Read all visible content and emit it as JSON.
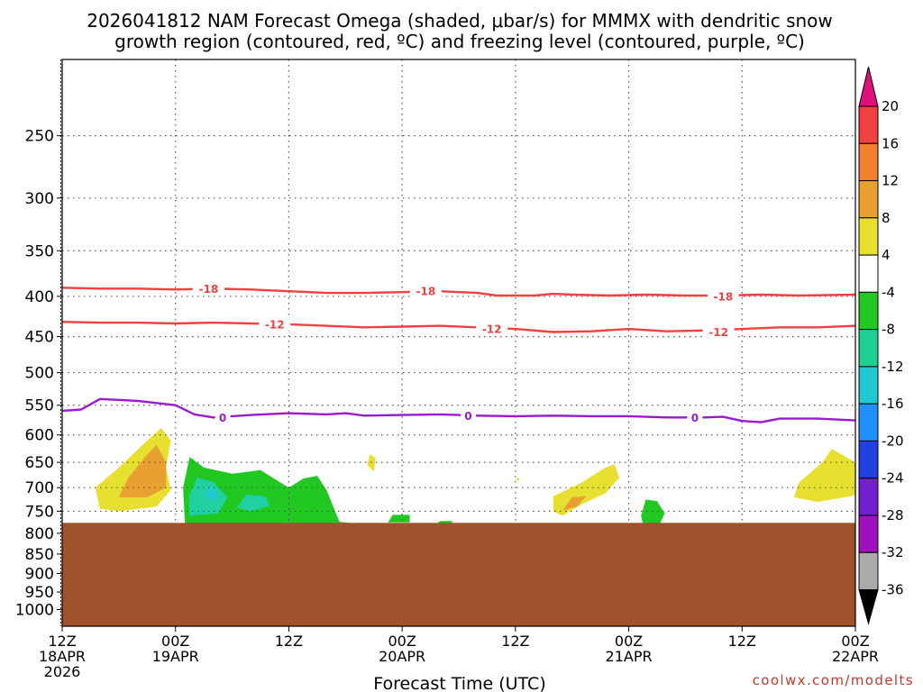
{
  "title_line1": "2026041812 NAM Forecast Omega (shaded, μbar/s) for MMMX with dendritic snow",
  "title_line2": "growth region (contoured, red, ºC) and freezing level (contoured, purple, ºC)",
  "credit": "coolwx.com/modelts",
  "chart_data": {
    "type": "heatmap",
    "title": "2026041812 NAM Forecast Omega (shaded, μbar/s) for MMMX with dendritic snow growth region (contoured, red, ºC) and freezing level (contoured, purple, ºC)",
    "xlabel": "Forecast Time (UTC)",
    "ylabel": "",
    "x_unit": "hours since 2026-04-18 12Z",
    "xlim": [
      0,
      84
    ],
    "ylim": [
      1050,
      200
    ],
    "y_scale": "log-pressure",
    "y_ticks": [
      250,
      300,
      350,
      400,
      450,
      500,
      550,
      600,
      650,
      700,
      750,
      800,
      850,
      900,
      950,
      1000
    ],
    "x_ticks": [
      {
        "x": 0,
        "l1": "12Z",
        "l2": "18APR",
        "l3": "2026"
      },
      {
        "x": 12,
        "l1": "00Z",
        "l2": "19APR",
        "l3": ""
      },
      {
        "x": 24,
        "l1": "12Z",
        "l2": "",
        "l3": ""
      },
      {
        "x": 36,
        "l1": "00Z",
        "l2": "20APR",
        "l3": ""
      },
      {
        "x": 48,
        "l1": "12Z",
        "l2": "",
        "l3": ""
      },
      {
        "x": 60,
        "l1": "00Z",
        "l2": "21APR",
        "l3": ""
      },
      {
        "x": 72,
        "l1": "12Z",
        "l2": "",
        "l3": ""
      },
      {
        "x": 84,
        "l1": "00Z",
        "l2": "22APR",
        "l3": ""
      }
    ],
    "grid": true,
    "ground_level_hpa": 776,
    "ground_color": "#a0522d",
    "contours": [
      {
        "name": "-18",
        "color": "#f04040",
        "points": [
          [
            0,
            390
          ],
          [
            4,
            391
          ],
          [
            8,
            391
          ],
          [
            12,
            392
          ],
          [
            16,
            391
          ],
          [
            20,
            392
          ],
          [
            24,
            394
          ],
          [
            28,
            396
          ],
          [
            32,
            396
          ],
          [
            36,
            395
          ],
          [
            40,
            394
          ],
          [
            44,
            396
          ],
          [
            46,
            399
          ],
          [
            48,
            399
          ],
          [
            50,
            399
          ],
          [
            52,
            397
          ],
          [
            54,
            398
          ],
          [
            58,
            399
          ],
          [
            62,
            398
          ],
          [
            66,
            399
          ],
          [
            70,
            399
          ],
          [
            74,
            398
          ],
          [
            78,
            399
          ],
          [
            84,
            398
          ]
        ],
        "labels": [
          [
            15.5,
            391
          ],
          [
            38.5,
            394
          ],
          [
            70,
            400
          ]
        ]
      },
      {
        "name": "-12",
        "color": "#f04040",
        "points": [
          [
            0,
            431
          ],
          [
            4,
            432
          ],
          [
            8,
            432
          ],
          [
            12,
            433
          ],
          [
            16,
            432
          ],
          [
            20,
            433
          ],
          [
            24,
            434
          ],
          [
            28,
            436
          ],
          [
            32,
            438
          ],
          [
            36,
            437
          ],
          [
            40,
            436
          ],
          [
            44,
            438
          ],
          [
            48,
            440
          ],
          [
            52,
            444
          ],
          [
            56,
            443
          ],
          [
            60,
            440
          ],
          [
            64,
            443
          ],
          [
            68,
            442
          ],
          [
            72,
            440
          ],
          [
            76,
            438
          ],
          [
            80,
            438
          ],
          [
            84,
            436
          ]
        ],
        "labels": [
          [
            22.5,
            434
          ],
          [
            45.5,
            440
          ],
          [
            69.5,
            444
          ]
        ]
      },
      {
        "name": "0",
        "color": "#9a1ad0",
        "points": [
          [
            0,
            559
          ],
          [
            2,
            557
          ],
          [
            4,
            540
          ],
          [
            8,
            543
          ],
          [
            12,
            550
          ],
          [
            14,
            565
          ],
          [
            16,
            570
          ],
          [
            20,
            566
          ],
          [
            24,
            563
          ],
          [
            28,
            565
          ],
          [
            30,
            563
          ],
          [
            32,
            567
          ],
          [
            36,
            566
          ],
          [
            40,
            565
          ],
          [
            44,
            567
          ],
          [
            48,
            568
          ],
          [
            52,
            567
          ],
          [
            56,
            568
          ],
          [
            60,
            568
          ],
          [
            64,
            570
          ],
          [
            68,
            570
          ],
          [
            70,
            569
          ],
          [
            72,
            576
          ],
          [
            74,
            578
          ],
          [
            76,
            572
          ],
          [
            80,
            572
          ],
          [
            84,
            575
          ]
        ],
        "labels": [
          [
            17,
            570
          ],
          [
            43,
            567
          ],
          [
            67,
            570
          ]
        ]
      }
    ],
    "omega_regions": [
      {
        "value": "4 to 8",
        "color": "#e8e030",
        "points": [
          [
            4,
            745
          ],
          [
            3.5,
            700
          ],
          [
            6,
            660
          ],
          [
            9,
            610
          ],
          [
            10.5,
            588
          ],
          [
            11.5,
            610
          ],
          [
            11,
            660
          ],
          [
            11.5,
            705
          ],
          [
            10,
            740
          ],
          [
            6,
            750
          ]
        ]
      },
      {
        "value": "8 to 12",
        "color": "#e8a030",
        "points": [
          [
            6,
            720
          ],
          [
            7,
            680
          ],
          [
            9,
            635
          ],
          [
            10,
            618
          ],
          [
            11,
            650
          ],
          [
            11,
            700
          ],
          [
            9,
            720
          ]
        ]
      },
      {
        "value": "4 to 8",
        "color": "#e8e030",
        "points": [
          [
            32.3,
            655
          ],
          [
            32.6,
            635
          ],
          [
            33.2,
            642
          ],
          [
            33,
            668
          ]
        ]
      },
      {
        "value": "4 to 8",
        "color": "#e8e030",
        "points": [
          [
            48,
            685
          ],
          [
            48.3,
            680
          ],
          [
            48.5,
            686
          ]
        ]
      },
      {
        "value": "4 to 8",
        "color": "#e8e030",
        "points": [
          [
            52,
            750
          ],
          [
            52,
            718
          ],
          [
            55,
            690
          ],
          [
            57.5,
            660
          ],
          [
            58.5,
            654
          ],
          [
            59,
            680
          ],
          [
            57.5,
            712
          ],
          [
            55,
            735
          ],
          [
            53,
            760
          ]
        ]
      },
      {
        "value": "8 to 12",
        "color": "#e8a030",
        "points": [
          [
            53,
            748
          ],
          [
            54,
            720
          ],
          [
            55.5,
            718
          ],
          [
            54.5,
            740
          ]
        ]
      },
      {
        "value": "4 to 8",
        "color": "#e8e030",
        "points": [
          [
            77.5,
            720
          ],
          [
            78,
            690
          ],
          [
            80.5,
            650
          ],
          [
            81.5,
            625
          ],
          [
            84,
            650
          ],
          [
            84,
            716
          ],
          [
            80,
            730
          ]
        ]
      },
      {
        "value": "-8 to -4",
        "color": "#22c822",
        "points": [
          [
            13,
            780
          ],
          [
            12.8,
            700
          ],
          [
            13.5,
            640
          ],
          [
            15,
            660
          ],
          [
            18,
            672
          ],
          [
            21,
            665
          ],
          [
            24,
            700
          ],
          [
            25.5,
            682
          ],
          [
            27,
            676
          ],
          [
            28,
            705
          ],
          [
            29,
            755
          ],
          [
            29.5,
            780
          ],
          [
            27,
            782
          ],
          [
            21,
            780
          ],
          [
            16,
            780
          ]
        ]
      },
      {
        "value": "-12 to -8",
        "color": "#20d0a0",
        "points": [
          [
            13.5,
            760
          ],
          [
            13.4,
            720
          ],
          [
            14.3,
            680
          ],
          [
            16,
            688
          ],
          [
            17.5,
            720
          ],
          [
            16.5,
            755
          ]
        ]
      },
      {
        "value": "-16 to -12",
        "color": "#20c8d0",
        "points": [
          [
            15,
            712
          ],
          [
            15.8,
            698
          ],
          [
            16.5,
            718
          ],
          [
            15.8,
            728
          ]
        ]
      },
      {
        "value": "-12 to -8",
        "color": "#20d0a0",
        "points": [
          [
            18.5,
            742
          ],
          [
            19.5,
            714
          ],
          [
            21.5,
            718
          ],
          [
            22,
            738
          ],
          [
            20,
            750
          ]
        ]
      },
      {
        "value": "-8 to -4",
        "color": "#22c822",
        "points": [
          [
            28.5,
            782
          ],
          [
            29,
            773
          ],
          [
            30.5,
            776
          ],
          [
            30,
            782
          ]
        ]
      },
      {
        "value": "-8 to -4",
        "color": "#22c822",
        "points": [
          [
            34.5,
            775
          ],
          [
            35,
            758
          ],
          [
            36.8,
            758
          ],
          [
            36.8,
            775
          ]
        ]
      },
      {
        "value": "-8 to -4",
        "color": "#22c822",
        "points": [
          [
            39.5,
            782
          ],
          [
            40,
            772
          ],
          [
            41.3,
            772
          ],
          [
            41.3,
            782
          ]
        ]
      },
      {
        "value": "-8 to -4",
        "color": "#22c822",
        "points": [
          [
            61.5,
            780
          ],
          [
            61.3,
            760
          ],
          [
            61.8,
            725
          ],
          [
            63,
            728
          ],
          [
            63.8,
            755
          ],
          [
            63.3,
            778
          ]
        ]
      },
      {
        "value": "-8 to -4",
        "color": "#22c822",
        "points": [
          [
            59,
            780
          ],
          [
            59.5,
            776
          ],
          [
            60.5,
            780
          ]
        ]
      },
      {
        "value": "-8 to -4",
        "color": "#22c822",
        "points": [
          [
            80,
            780
          ],
          [
            80.5,
            776
          ],
          [
            81.5,
            780
          ]
        ]
      }
    ],
    "colorbar": {
      "labels": [
        "20",
        "16",
        "12",
        "8",
        "4",
        "-4",
        "-8",
        "-12",
        "-16",
        "-20",
        "-24",
        "-28",
        "-32",
        "-36"
      ],
      "fill_colors": [
        "#f04040",
        "#f08030",
        "#e8a030",
        "#e8e030",
        "#ffffff",
        "#22c822",
        "#20d090",
        "#20c8d0",
        "#1e90ff",
        "#2040e0",
        "#7020d0",
        "#a010c0",
        "#aaaaaa"
      ],
      "top_arrow_color": "#e0107a",
      "bottom_arrow_color": "#000000"
    }
  }
}
